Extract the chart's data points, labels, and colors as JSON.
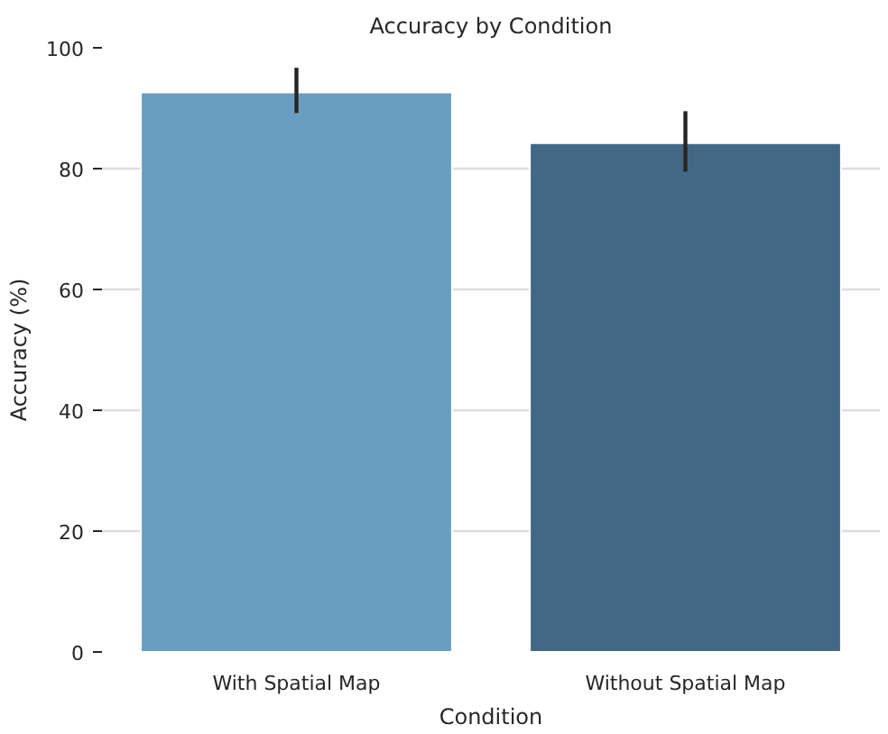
{
  "chart_data": {
    "type": "bar",
    "title": "Accuracy by Condition",
    "xlabel": "Condition",
    "ylabel": "Accuracy (%)",
    "categories": [
      "With Spatial Map",
      "Without Spatial Map"
    ],
    "values": [
      92.6,
      84.2
    ],
    "colors": [
      "#6a9ec0",
      "#426886"
    ],
    "errors": [
      [
        89.2,
        96.7
      ],
      [
        79.5,
        89.5
      ]
    ],
    "ylim": [
      0,
      100
    ],
    "yticks": [
      0,
      20,
      40,
      60,
      80,
      100
    ],
    "grid": "y"
  }
}
